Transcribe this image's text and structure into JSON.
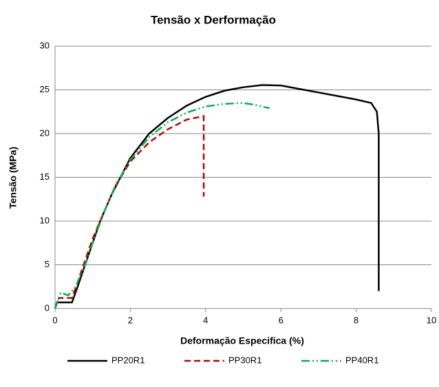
{
  "chart_data": {
    "type": "line",
    "title": "Tensão x Derformação",
    "xlabel": "Deformação Especifica (%)",
    "ylabel": "Tensão (MPa)",
    "xlim": [
      0,
      10
    ],
    "xticks": [
      0,
      2,
      4,
      6,
      8,
      10
    ],
    "ylim": [
      0,
      30
    ],
    "yticks": [
      0,
      5,
      10,
      15,
      20,
      25,
      30
    ],
    "grid": true,
    "series": [
      {
        "name": "PP20R1",
        "color": "#000000",
        "dash": "solid",
        "x": [
          0,
          0.05,
          0.45,
          0.6,
          0.8,
          1.0,
          1.2,
          1.5,
          2.0,
          2.5,
          3.0,
          3.5,
          4.0,
          4.5,
          5.0,
          5.5,
          6.0,
          6.5,
          7.0,
          7.5,
          8.0,
          8.4,
          8.55,
          8.6,
          8.6
        ],
        "values": [
          0,
          0.7,
          0.7,
          2.5,
          5,
          7.5,
          10,
          13,
          17.2,
          20,
          21.8,
          23.2,
          24.2,
          24.9,
          25.3,
          25.55,
          25.5,
          25.1,
          24.7,
          24.3,
          23.9,
          23.5,
          22.5,
          20,
          2
        ]
      },
      {
        "name": "PP30R1",
        "color": "#c00000",
        "dash": "dash",
        "x": [
          0,
          0.1,
          0.45,
          0.6,
          0.8,
          1.0,
          1.3,
          1.6,
          2.0,
          2.5,
          3.0,
          3.5,
          3.95,
          3.95
        ],
        "values": [
          0,
          1.2,
          1.2,
          3,
          5.5,
          8,
          11,
          14,
          16.8,
          19,
          20.5,
          21.6,
          22,
          12.8
        ]
      },
      {
        "name": "PP40R1",
        "color": "#00b050",
        "dash": "dashdot",
        "x": [
          0,
          0.15,
          0.35,
          0.55,
          0.8,
          1.0,
          1.3,
          1.6,
          2.0,
          2.5,
          3.0,
          3.5,
          4.0,
          4.5,
          5.0,
          5.3,
          5.7
        ],
        "values": [
          0,
          1.8,
          1.5,
          2.5,
          5,
          7.5,
          11,
          14,
          17,
          19.6,
          21.3,
          22.4,
          23.1,
          23.4,
          23.5,
          23.3,
          22.9
        ]
      }
    ]
  }
}
